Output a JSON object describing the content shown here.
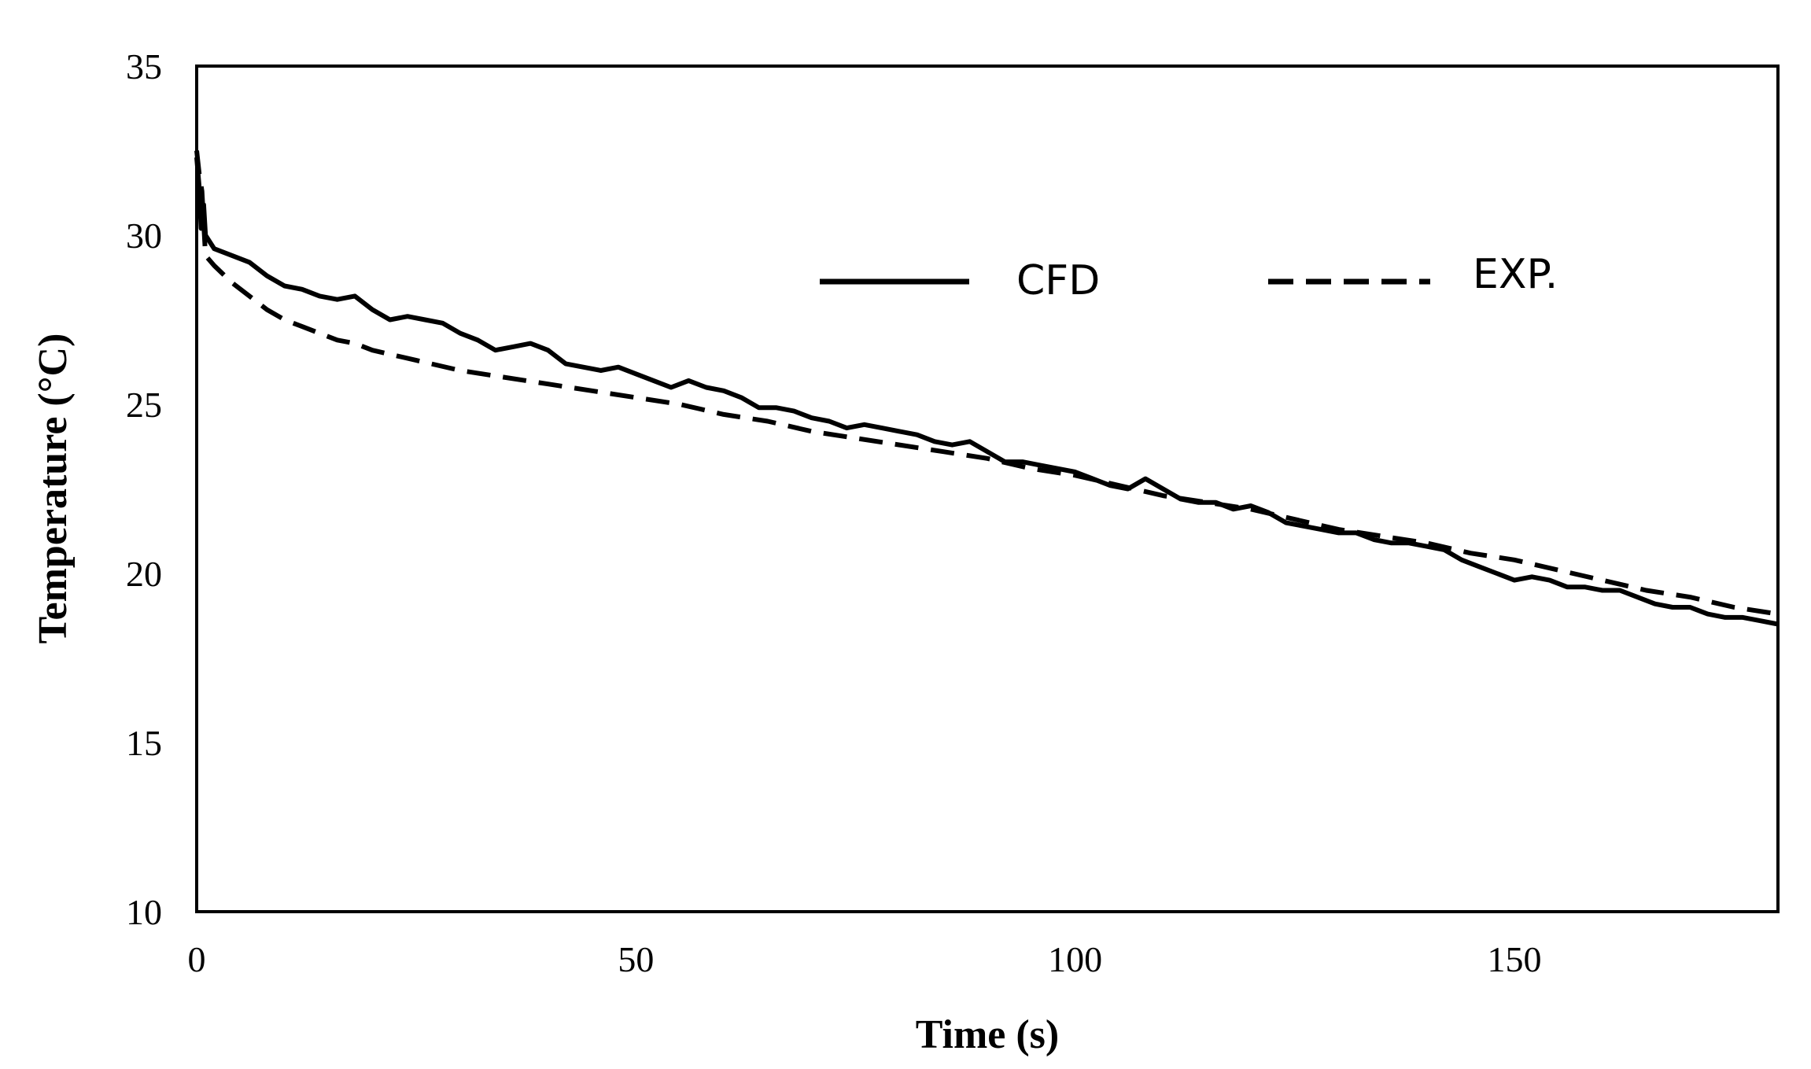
{
  "chart_data": {
    "type": "line",
    "title": "",
    "xlabel": "Time (s)",
    "ylabel": "Temperature (°C)",
    "xlim": [
      0,
      180
    ],
    "ylim": [
      10,
      35
    ],
    "xticks": [
      0,
      50,
      100,
      150
    ],
    "yticks": [
      10,
      15,
      20,
      25,
      30,
      35
    ],
    "grid": false,
    "legend_position": "top-right",
    "series": [
      {
        "name": "CFD",
        "style": "solid",
        "x": [
          0,
          0.3,
          0.5,
          0.8,
          1,
          2,
          4,
          6,
          8,
          10,
          12,
          14,
          16,
          18,
          20,
          22,
          24,
          26,
          28,
          30,
          32,
          34,
          36,
          38,
          40,
          42,
          44,
          46,
          48,
          50,
          52,
          54,
          56,
          58,
          60,
          62,
          64,
          66,
          68,
          70,
          72,
          74,
          76,
          78,
          80,
          82,
          84,
          86,
          88,
          90,
          92,
          94,
          96,
          98,
          100,
          102,
          104,
          106,
          108,
          110,
          112,
          114,
          116,
          118,
          120,
          122,
          124,
          126,
          128,
          130,
          132,
          134,
          136,
          138,
          140,
          142,
          144,
          146,
          148,
          150,
          152,
          154,
          156,
          158,
          160,
          162,
          164,
          166,
          168,
          170,
          172,
          174,
          176,
          178,
          180
        ],
        "values": [
          32.3,
          31.4,
          30.2,
          30.9,
          30.0,
          29.6,
          29.4,
          29.2,
          28.8,
          28.5,
          28.4,
          28.2,
          28.1,
          28.2,
          27.8,
          27.5,
          27.6,
          27.5,
          27.4,
          27.1,
          26.9,
          26.6,
          26.7,
          26.8,
          26.6,
          26.2,
          26.1,
          26.0,
          26.1,
          25.9,
          25.7,
          25.5,
          25.7,
          25.5,
          25.4,
          25.2,
          24.9,
          24.9,
          24.8,
          24.6,
          24.5,
          24.3,
          24.4,
          24.3,
          24.2,
          24.1,
          23.9,
          23.8,
          23.9,
          23.6,
          23.3,
          23.3,
          23.2,
          23.1,
          23.0,
          22.8,
          22.6,
          22.5,
          22.8,
          22.5,
          22.2,
          22.1,
          22.1,
          21.9,
          22.0,
          21.8,
          21.5,
          21.4,
          21.3,
          21.2,
          21.2,
          21.0,
          20.9,
          20.9,
          20.8,
          20.7,
          20.4,
          20.2,
          20.0,
          19.8,
          19.9,
          19.8,
          19.6,
          19.6,
          19.5,
          19.5,
          19.3,
          19.1,
          19.0,
          19.0,
          18.8,
          18.7,
          18.7,
          18.6,
          18.5
        ]
      },
      {
        "name": "EXP.",
        "style": "dashed",
        "x": [
          0,
          0.3,
          0.6,
          1,
          2,
          4,
          6,
          8,
          10,
          12,
          14,
          16,
          18,
          20,
          25,
          30,
          35,
          40,
          45,
          50,
          55,
          60,
          65,
          70,
          75,
          80,
          85,
          90,
          95,
          100,
          105,
          110,
          115,
          120,
          125,
          130,
          135,
          140,
          145,
          150,
          155,
          160,
          165,
          170,
          175,
          180
        ],
        "values": [
          32.5,
          31.8,
          31.3,
          29.4,
          29.1,
          28.6,
          28.2,
          27.8,
          27.5,
          27.3,
          27.1,
          26.9,
          26.8,
          26.6,
          26.3,
          26.0,
          25.8,
          25.6,
          25.4,
          25.2,
          25.0,
          24.7,
          24.5,
          24.2,
          24.0,
          23.8,
          23.6,
          23.4,
          23.1,
          22.9,
          22.6,
          22.3,
          22.1,
          21.9,
          21.6,
          21.3,
          21.1,
          20.9,
          20.6,
          20.4,
          20.1,
          19.8,
          19.5,
          19.3,
          19.0,
          18.8
        ]
      }
    ]
  }
}
